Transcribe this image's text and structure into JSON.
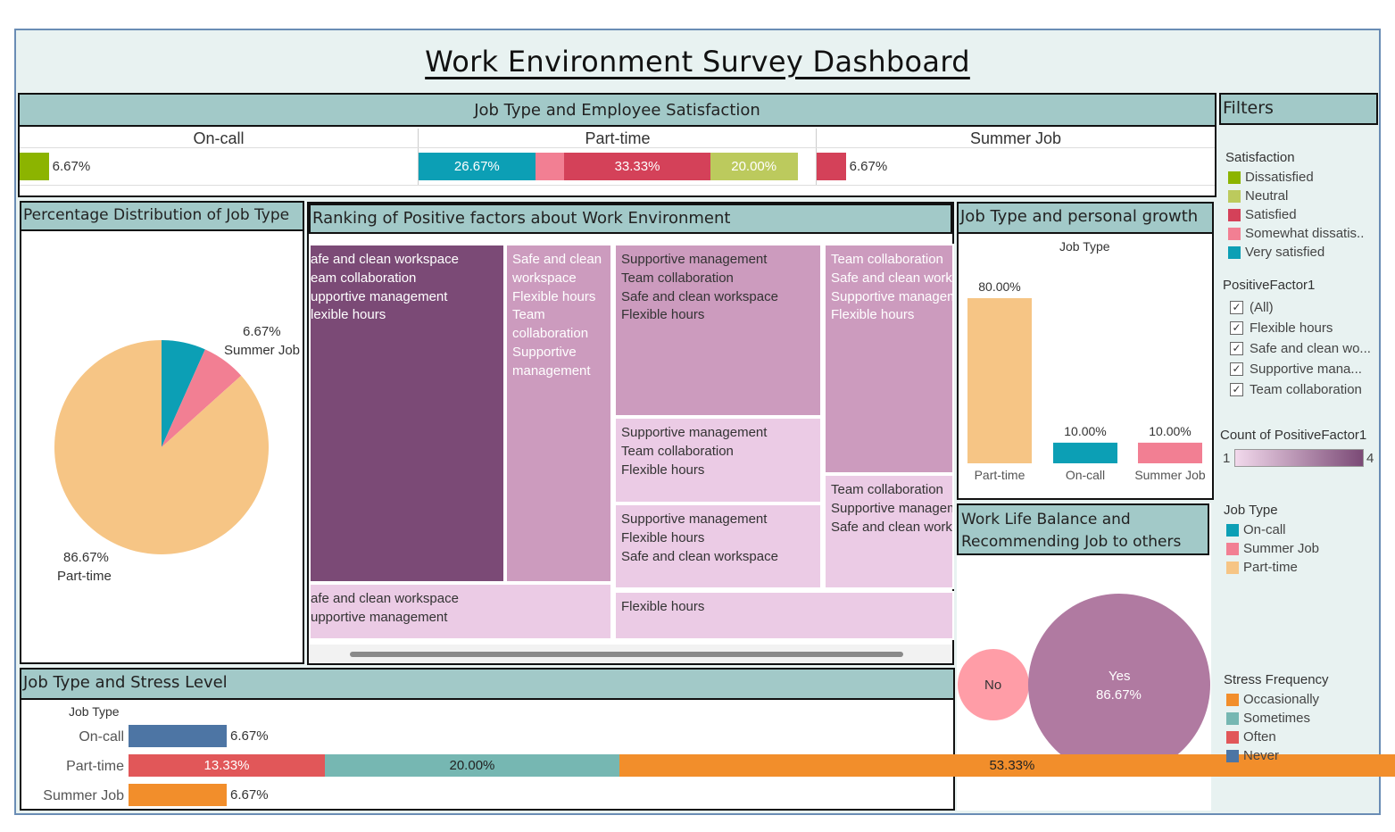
{
  "title": "Work Environment Survey Dashboard",
  "colors": {
    "teal": "#0c9fb5",
    "pink": "#f27f93",
    "red": "#d44159",
    "olive": "#8cb400",
    "lime": "#bcca5d",
    "peach": "#f6c585",
    "blue": "#4d75a4",
    "orange": "#f28e2b",
    "teal2": "#76b7b2",
    "red2": "#e15759",
    "plum_dark": "#7b4a76",
    "plum_mid": "#cc9bbe",
    "plum_light": "#ebcbe5",
    "yes_bubble": "#b07aa1",
    "no_bubble": "#ff9da7",
    "header_bg": "#a2c9c8"
  },
  "satisfaction_panel": {
    "header": "Job Type and Employee Satisfaction",
    "columns": [
      {
        "name": "On-call",
        "segments": [
          {
            "category": "Dissatisfied",
            "value": 6.67,
            "color": "#8cb400",
            "label": ""
          }
        ],
        "outside_label": "6.67%"
      },
      {
        "name": "Part-time",
        "segments": [
          {
            "category": "Very satisfied",
            "value": 26.67,
            "color": "#0c9fb5",
            "label": "26.67%"
          },
          {
            "category": "Somewhat dissatisfied",
            "value": 6.67,
            "color": "#f27f93",
            "label": ""
          },
          {
            "category": "Satisfied",
            "value": 33.33,
            "color": "#d44159",
            "label": "33.33%"
          },
          {
            "category": "Neutral",
            "value": 20.0,
            "color": "#bcca5d",
            "label": "20.00%"
          }
        ],
        "outside_label": ""
      },
      {
        "name": "Summer Job",
        "segments": [
          {
            "category": "Satisfied",
            "value": 6.67,
            "color": "#d44159",
            "label": ""
          }
        ],
        "outside_label": "6.67%"
      }
    ]
  },
  "pie_panel": {
    "header": "Percentage Distribution of Job Type",
    "labels": {
      "summer_pct": "6.67%",
      "summer_name": "Summer Job",
      "part_pct": "86.67%",
      "part_name": "Part-time"
    }
  },
  "treemap_panel": {
    "header": "Ranking of Positive factors about Work Environment",
    "tiles": [
      {
        "lines": [
          "afe and clean workspace",
          "eam collaboration",
          "upportive management",
          "lexible hours"
        ]
      },
      {
        "lines": [
          "Safe and clean workspace Flexible hours Team collaboration Supportive management"
        ]
      },
      {
        "lines": [
          "Supportive management",
          "Team collaboration",
          "Safe and clean workspace",
          "Flexible hours"
        ]
      },
      {
        "lines": [
          "Team collaboration",
          "Safe and clean workspace",
          "Supportive management",
          "Flexible hours"
        ]
      },
      {
        "lines": [
          "Supportive management",
          "Team collaboration",
          "Flexible hours"
        ]
      },
      {
        "lines": [
          "Team collaboration",
          "Supportive management",
          "Safe and clean workspace"
        ]
      },
      {
        "lines": [
          "Supportive management",
          "Flexible hours",
          "Safe and clean workspace"
        ]
      },
      {
        "lines": [
          "afe and clean workspace",
          "upportive management"
        ]
      },
      {
        "lines": [
          "Flexible hours"
        ]
      }
    ]
  },
  "growth_panel": {
    "header": "Job Type and personal growth",
    "axis_title": "Job Type"
  },
  "wlb_panel": {
    "header_line1": "Work Life Balance and",
    "header_line2": "Recommending Job to others",
    "no_label": "No",
    "yes_label": "Yes",
    "yes_value": "86.67%"
  },
  "stress_panel": {
    "header": "Job Type and Stress Level",
    "axis_title": "Job Type"
  },
  "filters": {
    "header": "Filters",
    "satisfaction_title": "Satisfaction",
    "satisfaction_items": [
      {
        "label": "Dissatisfied",
        "color": "#8cb400"
      },
      {
        "label": "Neutral",
        "color": "#bcca5d"
      },
      {
        "label": "Satisfied",
        "color": "#d44159"
      },
      {
        "label": "Somewhat dissatis..",
        "color": "#f27f93"
      },
      {
        "label": "Very satisfied",
        "color": "#0c9fb5"
      }
    ],
    "factor_title": "PositiveFactor1",
    "factor_items": [
      "(All)",
      "Flexible hours",
      "Safe and clean wo...",
      "Supportive mana...",
      "Team collaboration"
    ],
    "count_title": "Count of PositiveFactor1",
    "count_min": "1",
    "count_max": "4",
    "jobtype_title": "Job Type",
    "jobtype_items": [
      {
        "label": "On-call",
        "color": "#0c9fb5"
      },
      {
        "label": "Summer Job",
        "color": "#f27f93"
      },
      {
        "label": "Part-time",
        "color": "#f6c585"
      }
    ],
    "stress_title": "Stress Frequency",
    "stress_items": [
      {
        "label": "Occasionally",
        "color": "#f28e2b"
      },
      {
        "label": "Sometimes",
        "color": "#76b7b2"
      },
      {
        "label": "Often",
        "color": "#e15759"
      },
      {
        "label": "Never",
        "color": "#4d75a4"
      }
    ]
  },
  "chart_data": [
    {
      "type": "bar",
      "title": "Job Type and Employee Satisfaction",
      "orientation": "horizontal-stacked",
      "categories": [
        "On-call",
        "Part-time",
        "Summer Job"
      ],
      "series": [
        {
          "name": "Dissatisfied",
          "values": [
            6.67,
            0,
            0
          ]
        },
        {
          "name": "Very satisfied",
          "values": [
            0,
            26.67,
            0
          ]
        },
        {
          "name": "Somewhat dissatisfied",
          "values": [
            0,
            6.67,
            0
          ]
        },
        {
          "name": "Satisfied",
          "values": [
            0,
            33.33,
            6.67
          ]
        },
        {
          "name": "Neutral",
          "values": [
            0,
            20.0,
            0
          ]
        }
      ],
      "value_format": "percent"
    },
    {
      "type": "pie",
      "title": "Percentage Distribution of Job Type",
      "slices": [
        {
          "label": "On-call",
          "value": 6.67,
          "color": "#0c9fb5"
        },
        {
          "label": "Summer Job",
          "value": 6.67,
          "color": "#f27f93"
        },
        {
          "label": "Part-time",
          "value": 86.67,
          "color": "#f6c585"
        }
      ]
    },
    {
      "type": "bar",
      "title": "Job Type and personal growth",
      "xlabel": "Job Type",
      "categories": [
        "Part-time",
        "On-call",
        "Summer Job"
      ],
      "values": [
        80.0,
        10.0,
        10.0
      ],
      "colors": [
        "#f6c585",
        "#0c9fb5",
        "#f27f93"
      ],
      "value_labels": [
        "80.00%",
        "10.00%",
        "10.00%"
      ],
      "ylim": [
        0,
        80
      ]
    },
    {
      "type": "bar",
      "title": "Job Type and Stress Level",
      "orientation": "horizontal-stacked",
      "ylabel": "Job Type",
      "categories": [
        "On-call",
        "Part-time",
        "Summer Job"
      ],
      "series": [
        {
          "name": "Never",
          "values": [
            6.67,
            0,
            0
          ],
          "color": "#4d75a4"
        },
        {
          "name": "Often",
          "values": [
            0,
            13.33,
            0
          ],
          "color": "#e15759"
        },
        {
          "name": "Sometimes",
          "values": [
            0,
            20.0,
            0
          ],
          "color": "#76b7b2"
        },
        {
          "name": "Occasionally",
          "values": [
            0,
            53.33,
            6.67
          ],
          "color": "#f28e2b"
        }
      ],
      "value_labels": [
        [
          "6.67%"
        ],
        [
          "13.33%",
          "20.00%",
          "53.33%"
        ],
        [
          "6.67%"
        ]
      ]
    },
    {
      "type": "scatter",
      "title": "Work Life Balance and Recommending Job to others",
      "bubbles": [
        {
          "label": "No",
          "value": 13.33,
          "color": "#ff9da7"
        },
        {
          "label": "Yes",
          "value": 86.67,
          "color": "#b07aa1"
        }
      ]
    }
  ]
}
